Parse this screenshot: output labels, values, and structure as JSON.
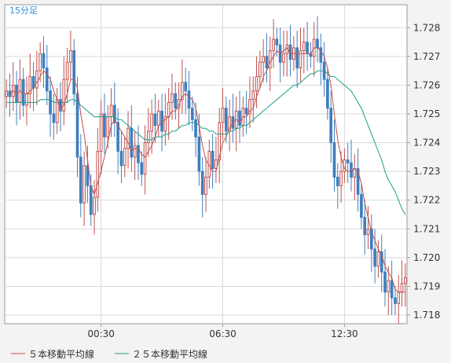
{
  "chart_data": {
    "type": "candlestick",
    "period_label": "15分足",
    "x_tick_labels": [
      "00:30",
      "06:30",
      "12:30"
    ],
    "x_tick_index": [
      28,
      64,
      100
    ],
    "y_tick_labels": [
      "1.728",
      "1.727",
      "1.726",
      "1.725",
      "1.724",
      "1.723",
      "1.722",
      "1.721",
      "1.720",
      "1.719",
      "1.718"
    ],
    "ylim": [
      1.7177,
      1.7288
    ],
    "grid": true,
    "legend": [
      {
        "name": "５本移動平均線",
        "color": "#c0504d"
      },
      {
        "name": "２５本移動平均線",
        "color": "#1a9f86"
      }
    ],
    "colors": {
      "up": "#c0504d",
      "down": "#3f7fbf",
      "ma5": "#c0504d",
      "ma25": "#1a9f86"
    },
    "closes": [
      1.7258,
      1.7256,
      1.726,
      1.7254,
      1.7262,
      1.7253,
      1.7257,
      1.7263,
      1.7259,
      1.7265,
      1.7271,
      1.7266,
      1.7258,
      1.725,
      1.7247,
      1.7255,
      1.7251,
      1.7262,
      1.7268,
      1.7272,
      1.7257,
      1.7235,
      1.7219,
      1.7232,
      1.7225,
      1.7215,
      1.7221,
      1.7237,
      1.725,
      1.7242,
      1.7249,
      1.7253,
      1.7247,
      1.7237,
      1.7232,
      1.7238,
      1.7245,
      1.7235,
      1.7239,
      1.7233,
      1.7229,
      1.724,
      1.7244,
      1.725,
      1.7246,
      1.7251,
      1.7244,
      1.7249,
      1.7254,
      1.7257,
      1.7252,
      1.7255,
      1.7261,
      1.7258,
      1.7252,
      1.7248,
      1.7242,
      1.723,
      1.7222,
      1.7228,
      1.7237,
      1.7231,
      1.7234,
      1.7247,
      1.7252,
      1.7244,
      1.7249,
      1.7245,
      1.7251,
      1.7246,
      1.7252,
      1.725,
      1.7255,
      1.7258,
      1.7263,
      1.7268,
      1.727,
      1.7266,
      1.7272,
      1.7276,
      1.7274,
      1.7268,
      1.7271,
      1.7274,
      1.7269,
      1.7273,
      1.7266,
      1.7272,
      1.7275,
      1.7271,
      1.727,
      1.7276,
      1.7273,
      1.7268,
      1.7262,
      1.7252,
      1.724,
      1.7228,
      1.7225,
      1.723,
      1.7234,
      1.7233,
      1.7228,
      1.7231,
      1.7222,
      1.7214,
      1.7208,
      1.721,
      1.7203,
      1.7197,
      1.7202,
      1.7195,
      1.7188,
      1.7192,
      1.7186,
      1.7184,
      1.7188,
      1.7191,
      1.7193
    ],
    "ma5": [
      1.7257,
      1.7257,
      1.7258,
      1.7257,
      1.7258,
      1.7257,
      1.7257,
      1.7258,
      1.7259,
      1.7261,
      1.7263,
      1.7265,
      1.7264,
      1.7262,
      1.7258,
      1.7255,
      1.7252,
      1.7253,
      1.7257,
      1.7262,
      1.7262,
      1.7259,
      1.725,
      1.7243,
      1.7234,
      1.7225,
      1.7222,
      1.7226,
      1.723,
      1.7235,
      1.724,
      1.7246,
      1.7248,
      1.7246,
      1.7244,
      1.7242,
      1.724,
      1.7237,
      1.7238,
      1.7238,
      1.7236,
      1.7235,
      1.7237,
      1.7239,
      1.7242,
      1.7246,
      1.7247,
      1.7248,
      1.7249,
      1.7251,
      1.7251,
      1.7253,
      1.7256,
      1.7257,
      1.7256,
      1.7255,
      1.7252,
      1.7246,
      1.7239,
      1.7234,
      1.7232,
      1.723,
      1.723,
      1.7235,
      1.724,
      1.7242,
      1.7245,
      1.7247,
      1.7248,
      1.7247,
      1.7249,
      1.7249,
      1.7251,
      1.7252,
      1.7256,
      1.7259,
      1.7263,
      1.7265,
      1.7268,
      1.727,
      1.7272,
      1.7271,
      1.7272,
      1.7273,
      1.7271,
      1.7271,
      1.7271,
      1.7271,
      1.7271,
      1.7271,
      1.7271,
      1.7273,
      1.7273,
      1.7272,
      1.727,
      1.7266,
      1.726,
      1.725,
      1.7241,
      1.7235,
      1.7231,
      1.723,
      1.723,
      1.7231,
      1.723,
      1.7226,
      1.7219,
      1.7214,
      1.7209,
      1.7206,
      1.7203,
      1.7201,
      1.7197,
      1.7195,
      1.7193,
      1.7189,
      1.7188,
      1.7188,
      1.7188
    ],
    "ma25": [
      1.7254,
      1.7254,
      1.7254,
      1.7254,
      1.7254,
      1.7254,
      1.7254,
      1.7254,
      1.7254,
      1.7254,
      1.7255,
      1.7255,
      1.7255,
      1.7255,
      1.7254,
      1.7254,
      1.7254,
      1.7254,
      1.7254,
      1.7255,
      1.7255,
      1.7254,
      1.7253,
      1.7252,
      1.7251,
      1.725,
      1.7249,
      1.7249,
      1.7249,
      1.7249,
      1.7249,
      1.7249,
      1.7249,
      1.7248,
      1.7248,
      1.7247,
      1.7246,
      1.7245,
      1.7244,
      1.7243,
      1.7242,
      1.7241,
      1.7241,
      1.7241,
      1.7242,
      1.7242,
      1.7242,
      1.7243,
      1.7243,
      1.7244,
      1.7244,
      1.7245,
      1.7246,
      1.7246,
      1.7247,
      1.7247,
      1.7247,
      1.7246,
      1.7245,
      1.7245,
      1.7244,
      1.7244,
      1.7243,
      1.7243,
      1.7243,
      1.7243,
      1.7244,
      1.7244,
      1.7245,
      1.7245,
      1.7246,
      1.7246,
      1.7247,
      1.7248,
      1.7249,
      1.725,
      1.7251,
      1.7252,
      1.7253,
      1.7254,
      1.7255,
      1.7256,
      1.7257,
      1.7258,
      1.7259,
      1.726,
      1.726,
      1.7261,
      1.7262,
      1.7263,
      1.7264,
      1.7264,
      1.7265,
      1.7265,
      1.7265,
      1.7264,
      1.7263,
      1.7263,
      1.7262,
      1.7261,
      1.726,
      1.7259,
      1.7258,
      1.7256,
      1.7254,
      1.7252,
      1.7249,
      1.7246,
      1.7243,
      1.724,
      1.7237,
      1.7234,
      1.723,
      1.7227,
      1.7225,
      1.7223,
      1.722,
      1.7217,
      1.7215
    ]
  }
}
